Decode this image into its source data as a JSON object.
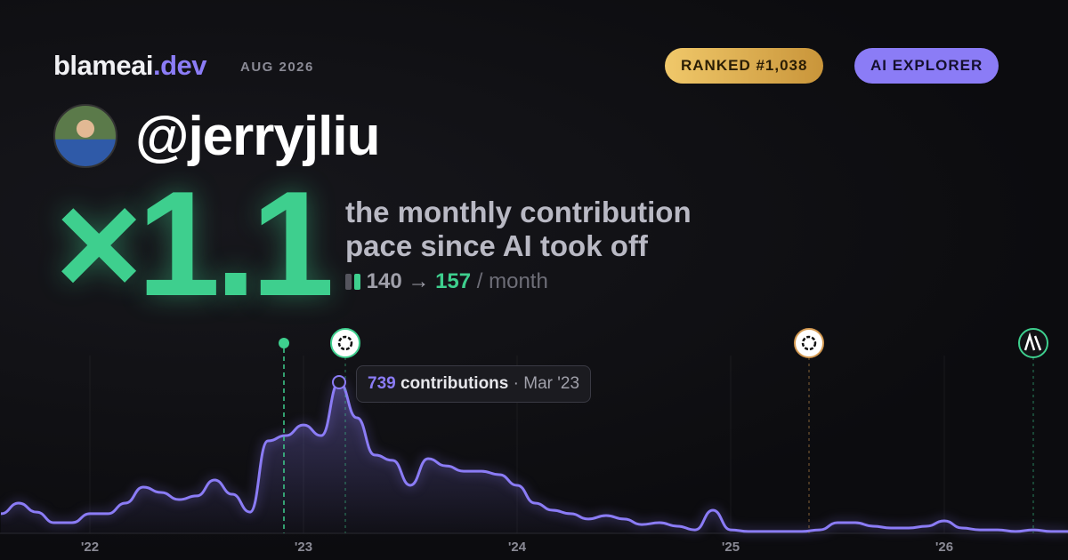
{
  "header": {
    "brand": "blameai",
    "brand_tld": ".dev",
    "date": "AUG 2026",
    "rank": "RANKED #1,038",
    "badge": "AI EXPLORER"
  },
  "profile": {
    "handle": "@jerryjliu"
  },
  "headline": {
    "multiplier": "×1.1",
    "line1": "the monthly contribution",
    "line2": "pace since AI took off",
    "before": 140,
    "arrow": "→",
    "after": 157,
    "unit": "/ month"
  },
  "tooltip": {
    "label": "contributions",
    "separator": "·",
    "date": "Mar '23"
  },
  "chart_data": {
    "type": "area",
    "color": "#8b7cf6",
    "categories": [
      null,
      null,
      null,
      null,
      null,
      "'22",
      null,
      null,
      null,
      null,
      null,
      null,
      null,
      null,
      null,
      null,
      null,
      "'23",
      null,
      null,
      null,
      null,
      null,
      null,
      null,
      null,
      null,
      null,
      null,
      "'24",
      null,
      null,
      null,
      null,
      null,
      null,
      null,
      null,
      null,
      null,
      null,
      "'25",
      null,
      null,
      null,
      null,
      null,
      null,
      null,
      null,
      null,
      null,
      null,
      "'26",
      null,
      null,
      null,
      null,
      null,
      null,
      null
    ],
    "values": [
      96,
      148,
      104,
      52,
      52,
      96,
      96,
      148,
      226,
      200,
      165,
      183,
      261,
      191,
      104,
      452,
      478,
      530,
      478,
      739,
      565,
      383,
      357,
      235,
      365,
      330,
      304,
      304,
      287,
      235,
      148,
      113,
      96,
      70,
      87,
      70,
      43,
      52,
      35,
      17,
      113,
      17,
      9,
      9,
      9,
      9,
      17,
      52,
      52,
      35,
      26,
      26,
      35,
      61,
      26,
      17,
      17,
      9,
      17,
      9,
      9
    ]
  }
}
